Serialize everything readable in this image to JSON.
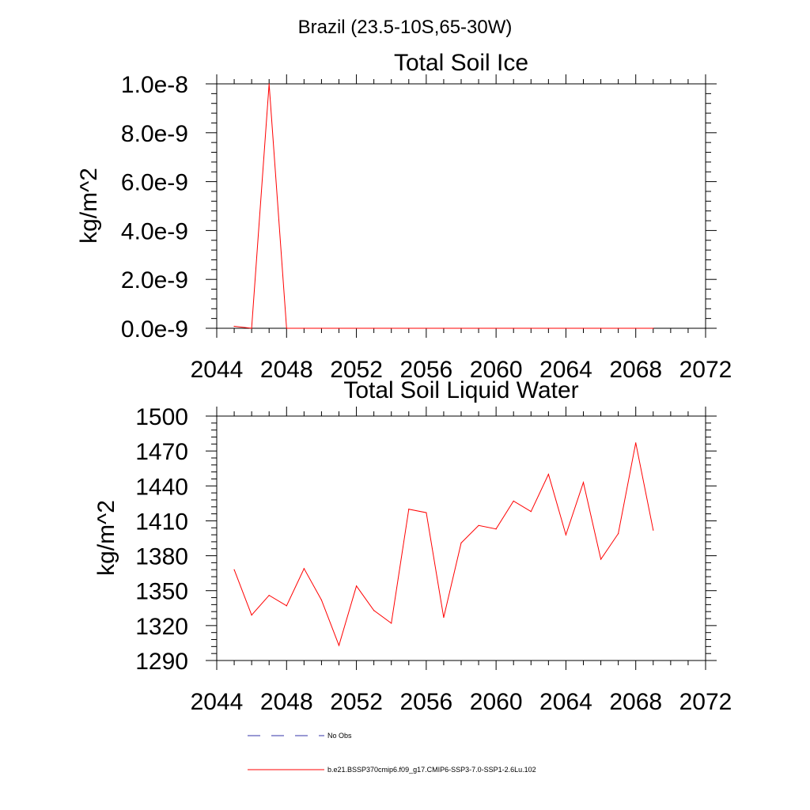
{
  "page_title": "Brazil (23.5-10S,65-30W)",
  "chart_data": [
    {
      "type": "line",
      "title": "Total Soil Ice",
      "xlabel": "",
      "ylabel": "kg/m^2",
      "xlim": [
        2044,
        2072
      ],
      "ylim": [
        0,
        1e-08
      ],
      "x_ticks": [
        2044,
        2048,
        2052,
        2056,
        2060,
        2064,
        2068,
        2072
      ],
      "x_tick_labels": [
        "2044",
        "2048",
        "2052",
        "2056",
        "2060",
        "2064",
        "2068",
        "2072"
      ],
      "y_ticks": [
        0,
        2e-09,
        4e-09,
        6e-09,
        8e-09,
        1e-08
      ],
      "y_tick_labels": [
        "0.0e-9",
        "2.0e-9",
        "4.0e-9",
        "6.0e-9",
        "8.0e-9",
        "1.0e-8"
      ],
      "x": [
        2045,
        2046,
        2047,
        2048,
        2049,
        2050,
        2051,
        2052,
        2053,
        2054,
        2055,
        2056,
        2057,
        2058,
        2059,
        2060,
        2061,
        2062,
        2063,
        2064,
        2065,
        2066,
        2067,
        2068,
        2069
      ],
      "series": [
        {
          "color": "#ff0000",
          "values": [
            8e-11,
            0,
            1e-08,
            0,
            0,
            0,
            0,
            0,
            0,
            0,
            0,
            0,
            0,
            0,
            0,
            0,
            0,
            0,
            0,
            0,
            0,
            0,
            0,
            0,
            0
          ]
        }
      ],
      "grid": false
    },
    {
      "type": "line",
      "title": "Total Soil Liquid Water",
      "xlabel": "",
      "ylabel": "kg/m^2",
      "xlim": [
        2044,
        2072
      ],
      "ylim": [
        1290,
        1500
      ],
      "x_ticks": [
        2044,
        2048,
        2052,
        2056,
        2060,
        2064,
        2068,
        2072
      ],
      "x_tick_labels": [
        "2044",
        "2048",
        "2052",
        "2056",
        "2060",
        "2064",
        "2068",
        "2072"
      ],
      "y_ticks": [
        1290,
        1320,
        1350,
        1380,
        1410,
        1440,
        1470,
        1500
      ],
      "y_tick_labels": [
        "1290",
        "1320",
        "1350",
        "1380",
        "1410",
        "1440",
        "1470",
        "1500"
      ],
      "x": [
        2045,
        2046,
        2047,
        2048,
        2049,
        2050,
        2051,
        2052,
        2053,
        2054,
        2055,
        2056,
        2057,
        2058,
        2059,
        2060,
        2061,
        2062,
        2063,
        2064,
        2065,
        2066,
        2067,
        2068,
        2069
      ],
      "series": [
        {
          "color": "#ff0000",
          "values": [
            1368,
            1329,
            1346,
            1337,
            1369,
            1342,
            1303,
            1354,
            1333,
            1322,
            1420,
            1417,
            1327,
            1391,
            1406,
            1403,
            1427,
            1418,
            1450,
            1398,
            1443,
            1377,
            1399,
            1477,
            1402
          ]
        }
      ],
      "grid": false
    }
  ],
  "legend": {
    "placement": "bottom",
    "entries": [
      {
        "label": "No Obs",
        "color": "#3333aa",
        "style": "dashed"
      },
      {
        "label": "b.e21.BSSP370cmip6.f09_g17.CMIP6-SSP3-7.0-SSP1-2.6Lu.102",
        "color": "#ff0000",
        "style": "solid"
      }
    ]
  }
}
